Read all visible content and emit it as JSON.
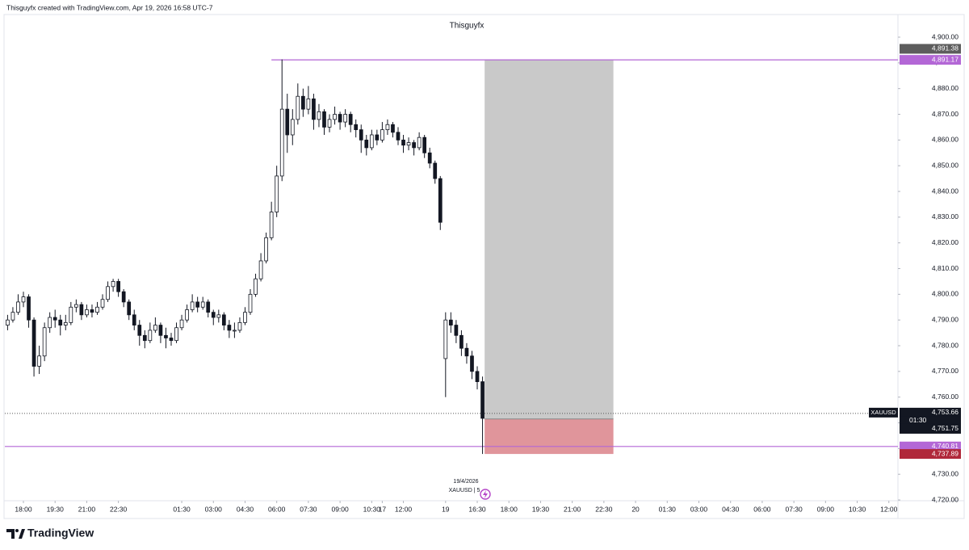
{
  "header": {
    "credit": "Thisguyfx created with TradingView.com, Apr 19, 2026 16:58 UTC-7"
  },
  "footer": {
    "logo": "TradingView"
  },
  "chart_data": {
    "type": "candlestick",
    "title": "Thisguyfx",
    "symbol_tag": "XAUUSD",
    "date_note": "19/4/2026",
    "legend_note": "XAUUSD | 5",
    "candle_color": "#131722",
    "xlim": [
      -0.88,
      41.43
    ],
    "xticks": [
      {
        "value": 0,
        "label": "18:00"
      },
      {
        "value": 1.5,
        "label": "19:30"
      },
      {
        "value": 3,
        "label": "21:00"
      },
      {
        "value": 4.5,
        "label": "22:30"
      },
      17,
      {
        "value": 7.5,
        "label": "01:30"
      },
      {
        "value": 9,
        "label": "03:00"
      },
      {
        "value": 10.5,
        "label": "04:30"
      },
      {
        "value": 12,
        "label": "06:00"
      },
      {
        "value": 13.5,
        "label": "07:30"
      },
      {
        "value": 15,
        "label": "09:00"
      },
      {
        "value": 16.5,
        "label": "10:30"
      },
      {
        "value": 18,
        "label": "12:00"
      },
      {
        "value": 20,
        "label": "19"
      },
      {
        "value": 21.5,
        "label": "16:30"
      },
      {
        "value": 23,
        "label": "18:00"
      },
      {
        "value": 24.5,
        "label": "19:30"
      },
      {
        "value": 26,
        "label": "21:00"
      },
      {
        "value": 27.5,
        "label": "22:30"
      },
      {
        "value": 29,
        "label": "20"
      },
      {
        "value": 30.5,
        "label": "01:30"
      },
      {
        "value": 32,
        "label": "03:00"
      },
      {
        "value": 33.5,
        "label": "04:30"
      },
      {
        "value": 35,
        "label": "06:00"
      },
      {
        "value": 36.5,
        "label": "07:30"
      },
      {
        "value": 38,
        "label": "09:00"
      },
      {
        "value": 39.5,
        "label": "10:30"
      },
      {
        "value": 41,
        "label": "12:00"
      }
    ],
    "ylim": [
      4719.7,
      4908.8
    ],
    "yticks": [
      {
        "value": 4720,
        "label": "4,720.00"
      },
      {
        "value": 4730,
        "label": "4,730.00"
      },
      {
        "value": 4740,
        "label": "4,740.00"
      },
      {
        "value": 4750,
        "label": "4,750.00"
      },
      {
        "value": 4760,
        "label": "4,760.00"
      },
      {
        "value": 4770,
        "label": "4,770.00"
      },
      {
        "value": 4780,
        "label": "4,780.00"
      },
      {
        "value": 4790,
        "label": "4,790.00"
      },
      {
        "value": 4800,
        "label": "4,800.00"
      },
      {
        "value": 4810,
        "label": "4,810.00"
      },
      {
        "value": 4820,
        "label": "4,820.00"
      },
      {
        "value": 4830,
        "label": "4,830.00"
      },
      {
        "value": 4840,
        "label": "4,840.00"
      },
      {
        "value": 4850,
        "label": "4,850.00"
      },
      {
        "value": 4860,
        "label": "4,860.00"
      },
      {
        "value": 4870,
        "label": "4,870.00"
      },
      {
        "value": 4880,
        "label": "4,880.00"
      },
      {
        "value": 4890,
        "label": "4,890.00"
      },
      {
        "value": 4900,
        "label": "4,900.00"
      }
    ],
    "x": [
      -0.75,
      -0.5,
      -0.25,
      0,
      0.25,
      0.5,
      0.75,
      1,
      1.25,
      1.5,
      1.75,
      2,
      2.25,
      2.5,
      2.75,
      3,
      3.25,
      3.5,
      3.75,
      4,
      4.25,
      4.5,
      4.75,
      5,
      5.25,
      5.5,
      5.75,
      6,
      6.25,
      6.5,
      6.75,
      7,
      7.25,
      7.5,
      7.75,
      8,
      8.25,
      8.5,
      8.75,
      9,
      9.25,
      9.5,
      9.75,
      10,
      10.25,
      10.5,
      10.75,
      11,
      11.25,
      11.5,
      11.75,
      12,
      12.25,
      12.5,
      12.75,
      13,
      13.25,
      13.5,
      13.75,
      14,
      14.25,
      14.5,
      14.75,
      15,
      15.25,
      15.5,
      15.75,
      16,
      16.25,
      16.5,
      16.75,
      17,
      17.25,
      17.5,
      17.75,
      18,
      18.25,
      18.5,
      18.75,
      19,
      19.25,
      19.5,
      19.75,
      20,
      20.25,
      20.5,
      20.75,
      21,
      21.25,
      21.5,
      21.75
    ],
    "ohlc": [
      [
        4788,
        4792,
        4786,
        4790
      ],
      [
        4790,
        4795,
        4789,
        4793
      ],
      [
        4793,
        4800,
        4792,
        4797
      ],
      [
        4797,
        4801,
        4795,
        4799
      ],
      [
        4799,
        4800,
        4787,
        4790
      ],
      [
        4790,
        4791,
        4768,
        4772
      ],
      [
        4772,
        4780,
        4769,
        4776
      ],
      [
        4776,
        4789,
        4774,
        4787
      ],
      [
        4787,
        4793,
        4785,
        4791
      ],
      [
        4791,
        4794,
        4787,
        4790
      ],
      [
        4790,
        4792,
        4784,
        4788
      ],
      [
        4788,
        4792,
        4786,
        4789
      ],
      [
        4789,
        4797,
        4788,
        4795
      ],
      [
        4795,
        4798,
        4793,
        4796
      ],
      [
        4796,
        4797,
        4790,
        4792
      ],
      [
        4792,
        4796,
        4791,
        4794
      ],
      [
        4794,
        4796,
        4791,
        4793
      ],
      [
        4793,
        4797,
        4792,
        4795
      ],
      [
        4795,
        4800,
        4794,
        4798
      ],
      [
        4798,
        4805,
        4797,
        4803
      ],
      [
        4803,
        4806,
        4801,
        4805
      ],
      [
        4805,
        4806,
        4799,
        4801
      ],
      [
        4801,
        4802,
        4795,
        4797
      ],
      [
        4797,
        4798,
        4790,
        4792
      ],
      [
        4792,
        4794,
        4786,
        4788
      ],
      [
        4788,
        4790,
        4780,
        4784
      ],
      [
        4784,
        4786,
        4779,
        4782
      ],
      [
        4782,
        4789,
        4781,
        4786
      ],
      [
        4786,
        4791,
        4785,
        4788
      ],
      [
        4788,
        4789,
        4781,
        4784
      ],
      [
        4784,
        4787,
        4779,
        4783
      ],
      [
        4783,
        4785,
        4780,
        4782
      ],
      [
        4782,
        4789,
        4781,
        4787
      ],
      [
        4787,
        4792,
        4786,
        4790
      ],
      [
        4790,
        4796,
        4789,
        4794
      ],
      [
        4794,
        4800,
        4793,
        4797
      ],
      [
        4797,
        4799,
        4793,
        4795
      ],
      [
        4795,
        4799,
        4794,
        4797
      ],
      [
        4797,
        4798,
        4791,
        4793
      ],
      [
        4793,
        4794,
        4788,
        4791
      ],
      [
        4791,
        4794,
        4789,
        4792
      ],
      [
        4792,
        4793,
        4786,
        4788
      ],
      [
        4788,
        4790,
        4783,
        4786
      ],
      [
        4786,
        4789,
        4783,
        4786
      ],
      [
        4786,
        4791,
        4785,
        4789
      ],
      [
        4789,
        4795,
        4788,
        4793
      ],
      [
        4793,
        4802,
        4792,
        4800
      ],
      [
        4800,
        4808,
        4799,
        4806
      ],
      [
        4806,
        4816,
        4805,
        4813
      ],
      [
        4813,
        4824,
        4812,
        4822
      ],
      [
        4822,
        4836,
        4821,
        4832
      ],
      [
        4832,
        4850,
        4830,
        4846
      ],
      [
        4846,
        4891.38,
        4844,
        4872
      ],
      [
        4872,
        4878,
        4855,
        4862
      ],
      [
        4862,
        4872,
        4858,
        4868
      ],
      [
        4868,
        4882,
        4866,
        4877
      ],
      [
        4877,
        4880,
        4869,
        4872
      ],
      [
        4872,
        4881,
        4870,
        4876
      ],
      [
        4876,
        4878,
        4864,
        4868
      ],
      [
        4868,
        4874,
        4865,
        4871
      ],
      [
        4871,
        4872,
        4862,
        4865
      ],
      [
        4865,
        4870,
        4863,
        4868
      ],
      [
        4868,
        4873,
        4866,
        4870
      ],
      [
        4870,
        4871,
        4864,
        4867
      ],
      [
        4867,
        4872,
        4865,
        4870
      ],
      [
        4870,
        4871,
        4863,
        4866
      ],
      [
        4866,
        4868,
        4861,
        4864
      ],
      [
        4864,
        4866,
        4855,
        4860
      ],
      [
        4860,
        4862,
        4854,
        4857
      ],
      [
        4857,
        4864,
        4856,
        4862
      ],
      [
        4862,
        4864,
        4858,
        4860
      ],
      [
        4860,
        4867,
        4859,
        4864
      ],
      [
        4864,
        4868,
        4862,
        4866
      ],
      [
        4866,
        4867,
        4861,
        4863
      ],
      [
        4863,
        4865,
        4858,
        4860
      ],
      [
        4860,
        4862,
        4855,
        4858
      ],
      [
        4858,
        4861,
        4856,
        4859
      ],
      [
        4859,
        4860,
        4854,
        4857
      ],
      [
        4857,
        4863,
        4856,
        4861
      ],
      [
        4861,
        4862,
        4853,
        4855
      ],
      [
        4855,
        4857,
        4849,
        4851
      ],
      [
        4851,
        4852,
        4843,
        4845
      ],
      [
        4845,
        4846,
        4825,
        4828
      ],
      [
        4775,
        4793,
        4760,
        4790
      ],
      [
        4790,
        4793,
        4785,
        4788
      ],
      [
        4788,
        4790,
        4781,
        4784
      ],
      [
        4784,
        4786,
        4776,
        4779
      ],
      [
        4779,
        4781,
        4773,
        4776
      ],
      [
        4776,
        4778,
        4767,
        4770
      ],
      [
        4770,
        4772,
        4763,
        4766
      ],
      [
        4766,
        4768,
        4737.89,
        4751.75
      ]
    ],
    "hlines": [
      {
        "value": 4891.17,
        "label": "4,891.17",
        "color": "#b367d6",
        "from_x": 11.75
      },
      {
        "value": 4740.81,
        "label": "4,740.81",
        "color": "#b367d6"
      }
    ],
    "position": {
      "x_range": [
        21.85,
        27.95
      ],
      "top": {
        "value": 4891.38,
        "label": "4,891.38"
      },
      "entry": 4751.5,
      "bottom": {
        "value": 4737.89,
        "label": "4,737.89"
      },
      "top_color": "#c9c9c9",
      "bottom_color": "#e0959b",
      "top_tag_color": "#5d5d5d",
      "bottom_tag_color": "#b0283a"
    },
    "last_price": {
      "value": 4753.66,
      "label": "4,753.66"
    },
    "countdown": "01:30",
    "bid": {
      "value": 4751.75,
      "label": "4,751.75"
    }
  }
}
